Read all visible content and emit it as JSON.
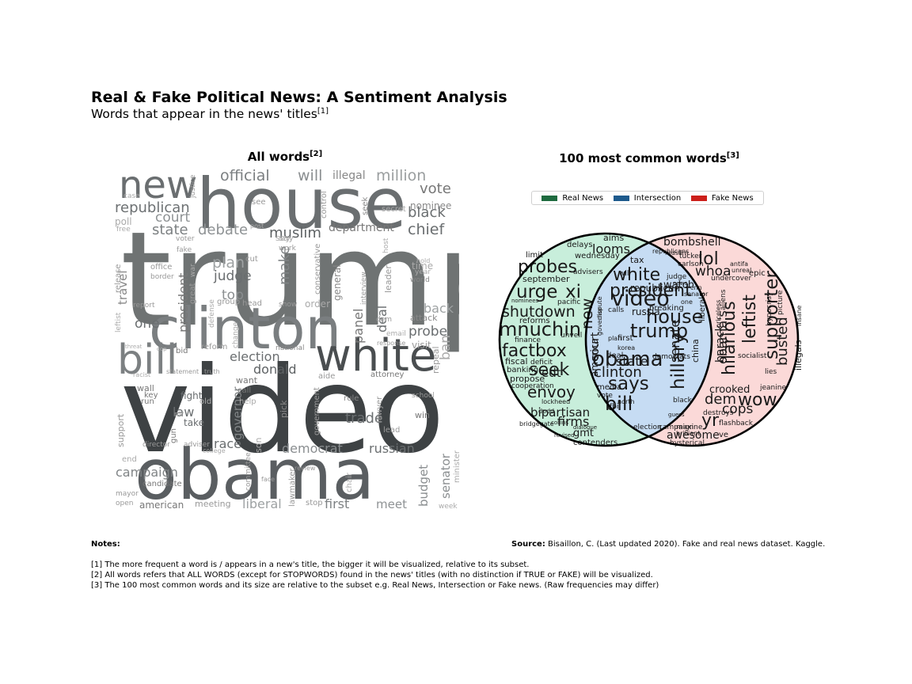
{
  "header": {
    "title": "Real & Fake Political News: A Sentiment Analysis",
    "subtitle": "Words that appear in the news' titles",
    "subtitle_ref": "[1]"
  },
  "left_panel": {
    "title": "All words",
    "title_ref": "[2]"
  },
  "right_panel": {
    "title": "100 most common words",
    "title_ref": "[3]"
  },
  "legend": [
    {
      "label": "Real News",
      "color": "#1e6b3f"
    },
    {
      "label": "Intersection",
      "color": "#1d5a8c"
    },
    {
      "label": "Fake News",
      "color": "#cc1f1a"
    }
  ],
  "chart_data": [
    {
      "type": "wordcloud",
      "title": "All words",
      "words": [
        "trump",
        "video",
        "house",
        "obama",
        "clinton",
        "white",
        "bill",
        "new",
        "official",
        "will",
        "illegal",
        "million",
        "vote",
        "republican",
        "nominee",
        "black",
        "chief",
        "court",
        "state",
        "debate",
        "muslim",
        "department",
        "plan",
        "judge",
        "make",
        "one",
        "president",
        "top",
        "election",
        "donald",
        "panel",
        "deal",
        "probe",
        "back",
        "attack",
        "visit",
        "ban",
        "trade",
        "russian",
        "democrat",
        "race",
        "governor",
        "law",
        "fight",
        "take",
        "campaign",
        "budget",
        "senator",
        "liberal",
        "first",
        "meet",
        "meeting",
        "american",
        "candidate",
        "support",
        "travel",
        "release",
        "leftist",
        "wall",
        "pick",
        "government",
        "rule",
        "win",
        "want",
        "aide",
        "attorney",
        "report",
        "say",
        "work",
        "general",
        "interview",
        "leader",
        "show",
        "order",
        "national",
        "reform",
        "group",
        "head",
        "cut",
        "poll",
        "free",
        "office",
        "border",
        "fake",
        "voter",
        "secret",
        "email",
        "lawyer",
        "school",
        "minister",
        "week",
        "director",
        "adviser",
        "mayor",
        "open",
        "end",
        "key",
        "run",
        "gun",
        "change",
        "defense",
        "cop",
        "bid",
        "truth",
        "statement",
        "racist",
        "threat",
        "see",
        "case",
        "post",
        "seek",
        "control",
        "conservative",
        "justice",
        "great",
        "war",
        "mr",
        "help",
        "call",
        "old",
        "son",
        "committee",
        "stop",
        "chair",
        "lawmaker",
        "face",
        "review",
        "dem",
        "host",
        "repeal",
        "response",
        "lead",
        "college",
        "year",
        "world",
        "time",
        "hold",
        "say"
      ]
    },
    {
      "type": "venn",
      "title": "100 most common words",
      "sets": [
        "Real News",
        "Intersection",
        "Fake News"
      ],
      "real_news": [
        "urge",
        "xi",
        "probes",
        "looms",
        "shutdown",
        "mnuchin",
        "factbox",
        "seek",
        "edt",
        "envoy",
        "bipartisan",
        "firms",
        "gmt",
        "delays",
        "aims",
        "wednesday",
        "limit",
        "advisers",
        "september",
        "reforms",
        "pacific",
        "propose",
        "fiscal",
        "banking",
        "finance",
        "cooperation",
        "deficit",
        "unveil",
        "bridgegate",
        "dodd",
        "lockheed",
        "dialogue",
        "contenders",
        "revised",
        "collins",
        "nominees",
        "court"
      ],
      "intersection": [
        "white",
        "video",
        "house",
        "trump",
        "obama",
        "clinton",
        "says",
        "bill",
        "new",
        "hillary",
        "senate",
        "state",
        "president",
        "republican",
        "watch",
        "tax",
        "russia",
        "will",
        "calls",
        "breaking",
        "democrats",
        "deal",
        "fbi",
        "vote",
        "media",
        "election",
        "campaign",
        "north",
        "black",
        "first",
        "plan",
        "korea",
        "china",
        "republicans",
        "america",
        "dispute",
        "governor",
        "senator",
        "news",
        "one",
        "cnn",
        "judge",
        "muslim"
      ],
      "fake_news": [
        "bombshell",
        "lol",
        "whoa",
        "hilarious",
        "leftist",
        "supporter",
        "dem",
        "wow",
        "crooked",
        "obama's",
        "cops",
        "busted",
        "yr",
        "awesome",
        "hysterical",
        "flashback",
        "destroys",
        "maxine",
        "brilliant",
        "undercover",
        "antifa",
        "epic",
        "lies",
        "illegals",
        "aliens",
        "priceless",
        "liberals",
        "tucker",
        "carlson",
        "unreal",
        "socialist",
        "picture",
        "jeanine",
        "ve",
        "guess",
        "hypocrisy",
        "barack",
        "insane"
      ],
      "circles": [
        "Real News",
        "Fake News"
      ]
    }
  ],
  "notes": {
    "label": "Notes:",
    "items": [
      "[1] The more frequent a word is / appears in a new's title, the bigger it will be visualized, relative to its subset.",
      "[2] All words refers that ALL WORDS (except for STOPWORDS) found in the news' titles (with no distinction if TRUE or FAKE) will be visualized.",
      "[3] The 100 most common words and its size are relative to the subset e.g. Real News, Intersection or Fake news. (Raw frequencies may differ)"
    ]
  },
  "source": {
    "label": "Source:",
    "text": "Bisaillon, C. (Last updated 2020). Fake and real news dataset. Kaggle."
  }
}
